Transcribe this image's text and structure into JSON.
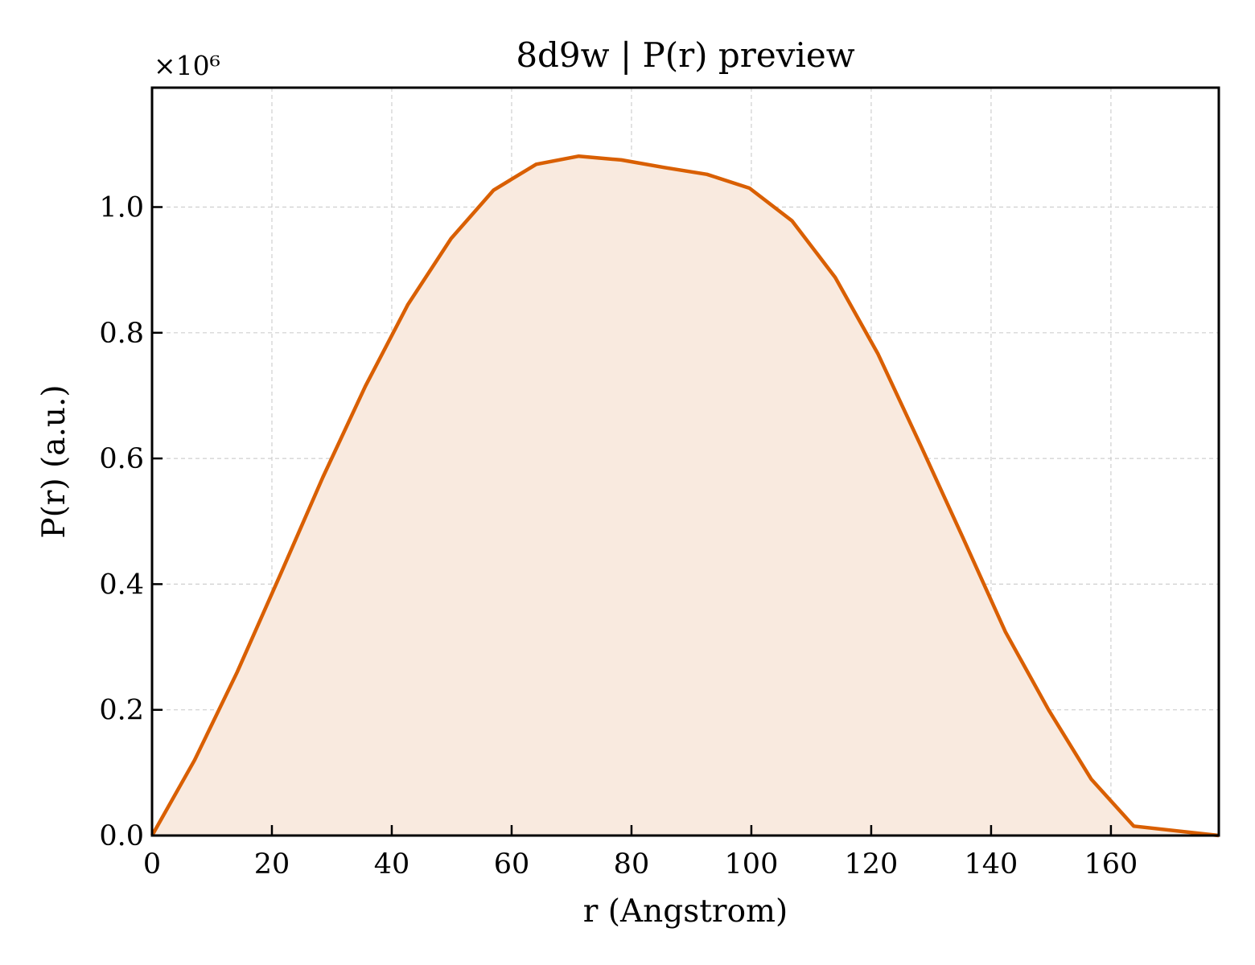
{
  "chart_data": {
    "type": "area",
    "title": "8d9w | P(r) preview",
    "xlabel": "r (Angstrom)",
    "ylabel": "P(r) (a.u.)",
    "y_offset_label": "×10⁶",
    "xlim": [
      0,
      178
    ],
    "ylim": [
      0,
      1.19
    ],
    "x_ticks": [
      0,
      20,
      40,
      60,
      80,
      100,
      120,
      140,
      160
    ],
    "x_tick_labels": [
      "0",
      "20",
      "40",
      "60",
      "80",
      "100",
      "120",
      "140",
      "160"
    ],
    "y_ticks": [
      0.0,
      0.2,
      0.4,
      0.6,
      0.8,
      1.0
    ],
    "y_tick_labels": [
      "0.0",
      "0.2",
      "0.4",
      "0.6",
      "0.8",
      "1.0"
    ],
    "grid": true,
    "colors": {
      "line": "#d95f02",
      "fill": "#f9eadf",
      "grid": "#cfcfcf"
    },
    "series": [
      {
        "x": [
          0,
          7.1,
          14.2,
          21.4,
          28.5,
          35.6,
          42.7,
          49.9,
          57.0,
          64.1,
          71.2,
          78.3,
          85.5,
          92.6,
          99.7,
          106.8,
          114.0,
          121.1,
          128.2,
          135.3,
          142.4,
          149.6,
          156.7,
          163.8,
          178.0
        ],
        "y": [
          0.0,
          0.12,
          0.26,
          0.415,
          0.57,
          0.715,
          0.845,
          0.95,
          1.027,
          1.068,
          1.081,
          1.075,
          1.063,
          1.052,
          1.03,
          0.978,
          0.888,
          0.767,
          0.622,
          0.474,
          0.324,
          0.2,
          0.09,
          0.015,
          0.0
        ]
      }
    ]
  }
}
